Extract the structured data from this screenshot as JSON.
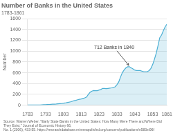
{
  "chart_data": {
    "type": "line",
    "title": "Number of Banks in the United States",
    "subtitle": "1783-1861",
    "ylabel": "Number",
    "source": "Source: Warren Weber, \"Early State Banks in the United States: How Many Were There and Where Did They Exist,\" Journal of Economic History 66,\nNo. 1 (2006), 433-55. https://researchdatabase.minneapolisfed.org/concern/publications/n583xt96f",
    "annotations": [
      {
        "text": "712 Banks in 1840",
        "x": 1840,
        "y": 712
      }
    ],
    "x": [
      1783,
      1784,
      1785,
      1786,
      1787,
      1788,
      1789,
      1790,
      1791,
      1792,
      1793,
      1794,
      1795,
      1796,
      1797,
      1798,
      1799,
      1800,
      1801,
      1802,
      1803,
      1804,
      1805,
      1806,
      1807,
      1808,
      1809,
      1810,
      1811,
      1812,
      1813,
      1814,
      1815,
      1816,
      1817,
      1818,
      1819,
      1820,
      1821,
      1822,
      1823,
      1824,
      1825,
      1826,
      1827,
      1828,
      1829,
      1830,
      1831,
      1832,
      1833,
      1834,
      1835,
      1836,
      1837,
      1838,
      1839,
      1840,
      1841,
      1842,
      1843,
      1844,
      1845,
      1846,
      1847,
      1848,
      1849,
      1850,
      1851,
      1852,
      1853,
      1854,
      1855,
      1856,
      1857,
      1858,
      1859,
      1860,
      1861
    ],
    "values": [
      3,
      3,
      3,
      3,
      3,
      3,
      4,
      4,
      6,
      8,
      9,
      12,
      14,
      16,
      18,
      20,
      22,
      25,
      28,
      30,
      34,
      40,
      48,
      55,
      62,
      72,
      82,
      90,
      100,
      108,
      115,
      125,
      135,
      150,
      200,
      240,
      260,
      270,
      268,
      267,
      280,
      290,
      310,
      310,
      305,
      310,
      315,
      320,
      330,
      340,
      380,
      430,
      520,
      600,
      650,
      690,
      710,
      712,
      690,
      670,
      650,
      640,
      640,
      640,
      630,
      620,
      620,
      620,
      640,
      680,
      750,
      850,
      960,
      1100,
      1250,
      1300,
      1380,
      1450,
      1500
    ],
    "color": "#4bafd4",
    "xlim": [
      1783,
      1861
    ],
    "ylim": [
      0,
      1600
    ],
    "xticks": [
      1783,
      1793,
      1803,
      1813,
      1823,
      1833,
      1843,
      1853,
      1861
    ],
    "yticks": [
      0,
      200,
      400,
      600,
      800,
      1000,
      1200,
      1400,
      1600
    ],
    "grid": "y"
  }
}
